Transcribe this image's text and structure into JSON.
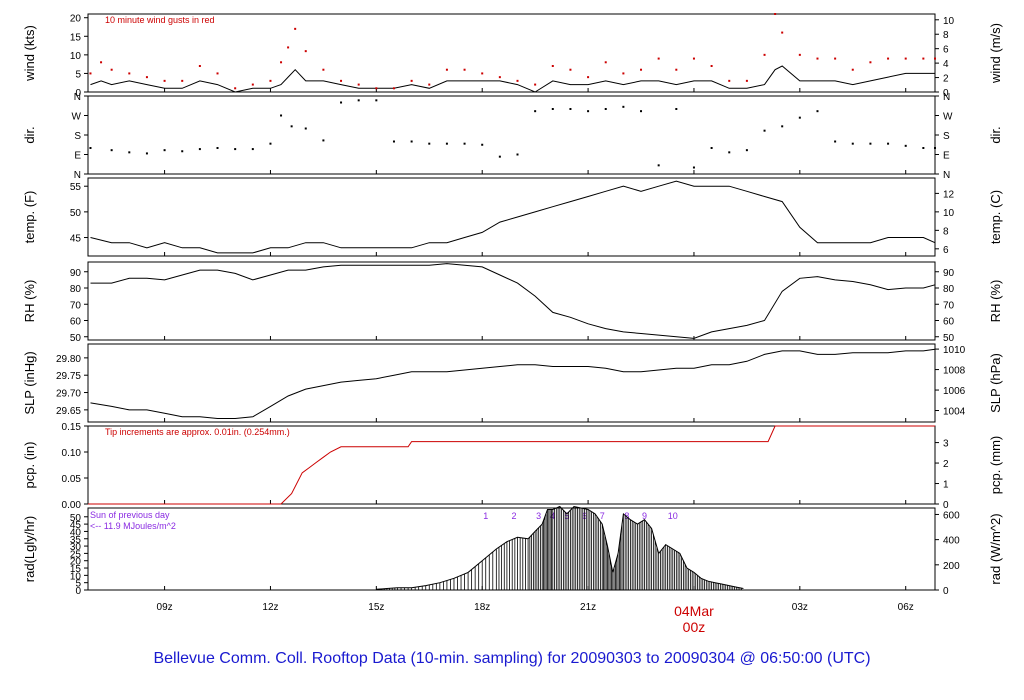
{
  "caption": "Bellevue Comm. Coll. Rooftop Data (10-min. sampling) for 20090303  to  20090304 @ 06:50:00  (UTC)",
  "chart_data": {
    "type": "line",
    "x_axis": {
      "ticks": [
        "09z",
        "12z",
        "15z",
        "18z",
        "21z",
        "03z",
        "06z"
      ],
      "tick_hours": [
        9,
        12,
        15,
        18,
        21,
        27,
        30
      ],
      "day_marker": {
        "date": "04Mar",
        "hour_label": "00z",
        "hour": 24
      },
      "range_hours": [
        6.83,
        30.83
      ]
    },
    "panels": [
      {
        "id": "wind",
        "ylabel_left": "wind (kts)",
        "ylabel_right": "wind (m/s)",
        "ylim": [
          0,
          21
        ],
        "left_ticks": [
          0,
          5,
          10,
          15,
          20
        ],
        "right_ticks": [
          0,
          2,
          4,
          6,
          8,
          10
        ],
        "annotation": "10  minute wind gusts in red",
        "series": [
          {
            "style": "line",
            "color": "#000000",
            "x": [
              6.9,
              7.2,
              7.5,
              8.0,
              8.5,
              9.0,
              9.5,
              10.0,
              10.5,
              11.0,
              11.5,
              12.0,
              12.3,
              12.5,
              12.7,
              13.0,
              13.5,
              14.0,
              14.5,
              15.0,
              15.5,
              16.0,
              16.5,
              17.0,
              17.5,
              18.0,
              18.5,
              19.0,
              19.5,
              20.0,
              20.5,
              21.0,
              21.5,
              22.0,
              22.5,
              23.0,
              23.5,
              24.0,
              24.5,
              25.0,
              25.5,
              26.0,
              26.3,
              26.5,
              27.0,
              27.5,
              28.0,
              28.5,
              29.0,
              29.5,
              30.0,
              30.5,
              30.83
            ],
            "y": [
              2,
              3,
              2,
              3,
              2,
              1,
              1,
              3,
              2,
              0,
              1,
              1,
              2,
              4,
              6,
              3,
              3,
              2,
              1,
              1,
              1,
              2,
              1,
              3,
              3,
              3,
              3,
              2,
              0,
              3,
              2,
              2,
              3,
              2,
              3,
              3,
              2,
              3,
              3,
              1,
              1,
              2,
              6,
              7,
              3,
              3,
              3,
              2,
              3,
              4,
              5,
              5,
              5
            ]
          },
          {
            "style": "dots",
            "color": "#cc0000",
            "x": [
              6.9,
              7.2,
              7.5,
              8.0,
              8.5,
              9.0,
              9.5,
              10.0,
              10.5,
              11.0,
              11.5,
              12.0,
              12.3,
              12.5,
              12.7,
              13.0,
              13.5,
              14.0,
              14.5,
              15.0,
              15.5,
              16.0,
              16.5,
              17.0,
              17.5,
              18.0,
              18.5,
              19.0,
              19.5,
              20.0,
              20.5,
              21.0,
              21.5,
              22.0,
              22.5,
              23.0,
              23.5,
              24.0,
              24.5,
              25.0,
              25.5,
              26.0,
              26.3,
              26.5,
              27.0,
              27.5,
              28.0,
              28.5,
              29.0,
              29.5,
              30.0,
              30.5,
              30.83
            ],
            "y": [
              5,
              8,
              6,
              5,
              4,
              3,
              3,
              7,
              5,
              1,
              2,
              3,
              8,
              12,
              17,
              11,
              6,
              3,
              2,
              1,
              1,
              3,
              2,
              6,
              6,
              5,
              4,
              3,
              2,
              7,
              6,
              4,
              8,
              5,
              6,
              9,
              6,
              9,
              7,
              3,
              3,
              10,
              21,
              16,
              10,
              9,
              9,
              6,
              8,
              9,
              9,
              9,
              9
            ]
          }
        ]
      },
      {
        "id": "dir",
        "ylabel_left": "dir.",
        "ylabel_right": "dir.",
        "categories": [
          "N",
          "E",
          "S",
          "W",
          "N"
        ],
        "ylim": [
          0,
          360
        ],
        "series": [
          {
            "style": "dots",
            "color": "#000000",
            "x": [
              6.9,
              7.5,
              8.0,
              8.5,
              9.0,
              9.5,
              10.0,
              10.5,
              11.0,
              11.5,
              12.0,
              12.3,
              12.6,
              13.0,
              13.5,
              14.0,
              14.5,
              15.0,
              15.5,
              16.0,
              16.5,
              17.0,
              17.5,
              18.0,
              18.5,
              19.0,
              19.5,
              20.0,
              20.5,
              21.0,
              21.5,
              22.0,
              22.5,
              23.0,
              23.5,
              24.0,
              24.5,
              25.0,
              25.5,
              26.0,
              26.5,
              27.0,
              27.5,
              28.0,
              28.5,
              29.0,
              29.5,
              30.0,
              30.5,
              30.83
            ],
            "y": [
              120,
              110,
              100,
              95,
              110,
              105,
              115,
              120,
              115,
              115,
              140,
              270,
              220,
              210,
              155,
              330,
              340,
              340,
              150,
              150,
              140,
              140,
              140,
              135,
              80,
              90,
              290,
              300,
              300,
              290,
              300,
              310,
              290,
              40,
              300,
              30,
              120,
              100,
              110,
              200,
              220,
              260,
              290,
              150,
              140,
              140,
              140,
              130,
              120,
              120
            ]
          }
        ]
      },
      {
        "id": "temp",
        "ylabel_left": "temp. (F)",
        "ylabel_right": "temp. (C)",
        "ylim": [
          41.4,
          56.6
        ],
        "left_ticks": [
          45,
          50,
          55
        ],
        "right_ticks": [
          6,
          8,
          10,
          12
        ],
        "series": [
          {
            "style": "line",
            "color": "#000000",
            "x": [
              6.9,
              7.5,
              8.0,
              8.5,
              9.0,
              9.5,
              10.0,
              10.5,
              11.0,
              11.5,
              12.0,
              12.5,
              13.0,
              13.5,
              14.0,
              14.5,
              15.0,
              15.5,
              16.0,
              16.5,
              17.0,
              17.5,
              18.0,
              18.5,
              19.0,
              19.5,
              20.0,
              20.5,
              21.0,
              21.5,
              22.0,
              22.5,
              23.0,
              23.5,
              24.0,
              24.5,
              25.0,
              25.5,
              26.0,
              26.5,
              27.0,
              27.5,
              28.0,
              28.5,
              29.0,
              29.5,
              30.0,
              30.5,
              30.83
            ],
            "y": [
              45,
              44,
              44,
              43,
              44,
              43,
              43,
              42,
              42,
              42,
              43,
              43,
              44,
              44,
              43,
              43,
              43,
              43,
              43,
              44,
              44,
              45,
              46,
              48,
              49,
              50,
              51,
              52,
              53,
              54,
              55,
              54,
              55,
              56,
              55,
              55,
              55,
              54,
              53,
              52,
              47,
              44,
              44,
              44,
              44,
              45,
              45,
              45,
              44
            ]
          }
        ]
      },
      {
        "id": "rh",
        "ylabel_left": "RH (%)",
        "ylabel_right": "RH (%)",
        "ylim": [
          48,
          96
        ],
        "left_ticks": [
          50,
          60,
          70,
          80,
          90
        ],
        "right_ticks": [
          50,
          60,
          70,
          80,
          90
        ],
        "series": [
          {
            "style": "line",
            "color": "#000000",
            "x": [
              6.9,
              7.5,
              8.0,
              8.5,
              9.0,
              9.5,
              10.0,
              10.5,
              11.0,
              11.5,
              12.0,
              12.5,
              13.0,
              13.5,
              14.0,
              14.5,
              15.0,
              15.5,
              16.0,
              16.5,
              17.0,
              17.5,
              18.0,
              18.5,
              19.0,
              19.5,
              20.0,
              20.5,
              21.0,
              21.5,
              22.0,
              22.5,
              23.0,
              23.5,
              24.0,
              24.5,
              25.0,
              25.5,
              26.0,
              26.5,
              27.0,
              27.5,
              28.0,
              28.5,
              29.0,
              29.5,
              30.0,
              30.5,
              30.83
            ],
            "y": [
              83,
              83,
              86,
              86,
              85,
              88,
              91,
              91,
              89,
              85,
              88,
              91,
              91,
              93,
              94,
              94,
              94,
              94,
              94,
              94,
              95,
              94,
              93,
              88,
              83,
              75,
              65,
              62,
              58,
              55,
              53,
              52,
              51,
              50,
              49,
              53,
              55,
              57,
              60,
              78,
              86,
              87,
              85,
              84,
              82,
              79,
              80,
              80,
              82
            ]
          }
        ]
      },
      {
        "id": "slp",
        "ylabel_left": "SLP (inHg)",
        "ylabel_right": "SLP (hPa)",
        "ylim": [
          29.615,
          29.84
        ],
        "left_ticks": [
          29.65,
          29.7,
          29.75,
          29.8
        ],
        "right_ticks": [
          1004,
          1006,
          1008,
          1010
        ],
        "series": [
          {
            "style": "line",
            "color": "#000000",
            "x": [
              6.9,
              7.5,
              8.0,
              8.5,
              9.0,
              9.5,
              10.0,
              10.5,
              11.0,
              11.5,
              12.0,
              12.5,
              13.0,
              13.5,
              14.0,
              14.5,
              15.0,
              15.5,
              16.0,
              16.5,
              17.0,
              17.5,
              18.0,
              18.5,
              19.0,
              19.5,
              20.0,
              20.5,
              21.0,
              21.5,
              22.0,
              22.5,
              23.0,
              23.5,
              24.0,
              24.5,
              25.0,
              25.5,
              26.0,
              26.5,
              27.0,
              27.5,
              28.0,
              28.5,
              29.0,
              29.5,
              30.0,
              30.5,
              30.83
            ],
            "y": [
              29.67,
              29.66,
              29.65,
              29.65,
              29.64,
              29.63,
              29.63,
              29.625,
              29.625,
              29.63,
              29.66,
              29.69,
              29.71,
              29.72,
              29.73,
              29.735,
              29.74,
              29.75,
              29.76,
              29.76,
              29.76,
              29.765,
              29.77,
              29.775,
              29.78,
              29.78,
              29.775,
              29.775,
              29.775,
              29.77,
              29.76,
              29.76,
              29.765,
              29.77,
              29.77,
              29.78,
              29.78,
              29.79,
              29.81,
              29.82,
              29.82,
              29.81,
              29.81,
              29.815,
              29.815,
              29.815,
              29.82,
              29.82,
              29.825
            ]
          }
        ]
      },
      {
        "id": "pcp",
        "ylabel_left": "pcp. (in)",
        "ylabel_right": "pcp. (mm)",
        "ylim": [
          0,
          0.15
        ],
        "left_ticks": [
          0.0,
          0.05,
          0.1,
          0.15
        ],
        "right_ticks": [
          0,
          1,
          2,
          3
        ],
        "annotation": "Tip increments are approx. 0.01in. (0.254mm.)",
        "series": [
          {
            "style": "line",
            "color": "#cc0000",
            "x": [
              6.83,
              12.3,
              12.6,
              12.9,
              13.1,
              13.3,
              13.5,
              13.7,
              14.0,
              15.9,
              16.0,
              26.1,
              26.3,
              30.83
            ],
            "y": [
              0,
              0,
              0.02,
              0.06,
              0.07,
              0.08,
              0.09,
              0.1,
              0.11,
              0.11,
              0.12,
              0.12,
              0.15,
              0.15
            ]
          }
        ]
      },
      {
        "id": "rad",
        "ylabel_left": "rad(Lgly/hr)",
        "ylabel_right": "rad (W/m^2)",
        "ylim": [
          0,
          56
        ],
        "left_ticks": [
          0,
          5,
          10,
          15,
          20,
          25,
          30,
          35,
          40,
          45,
          50
        ],
        "right_ticks": [
          0,
          200,
          400,
          600
        ],
        "annotation_lines": [
          "Sun of previous day",
          "<-- 11.9 MJoules/m^2"
        ],
        "hour_labels": [
          "1",
          "2",
          "3",
          "4",
          "5",
          "6",
          "7",
          "8",
          "9",
          "10"
        ],
        "hour_label_x": [
          18.1,
          18.9,
          19.6,
          20.0,
          20.4,
          20.9,
          21.4,
          22.1,
          22.6,
          23.4
        ],
        "series": [
          {
            "style": "impulse-line",
            "color": "#000000",
            "x": [
              15.0,
              15.3,
              15.6,
              16.0,
              16.4,
              16.8,
              17.2,
              17.6,
              18.0,
              18.4,
              18.7,
              19.0,
              19.3,
              19.5,
              19.7,
              19.85,
              20.0,
              20.2,
              20.4,
              20.6,
              20.8,
              21.0,
              21.2,
              21.4,
              21.55,
              21.7,
              21.85,
              22.0,
              22.2,
              22.4,
              22.6,
              22.8,
              23.0,
              23.2,
              23.4,
              23.6,
              23.8,
              24.0,
              24.2,
              24.4,
              24.6,
              24.8,
              25.0,
              25.2,
              25.4
            ],
            "y": [
              0.5,
              1,
              1.5,
              1.5,
              3,
              5,
              8,
              12,
              20,
              28,
              33,
              36,
              35,
              40,
              45,
              55,
              55,
              57,
              52,
              57,
              56,
              55,
              52,
              45,
              30,
              12,
              25,
              52,
              48,
              45,
              48,
              42,
              25,
              31,
              28,
              25,
              15,
              12,
              8,
              6,
              5,
              4,
              3,
              2,
              1
            ]
          }
        ]
      }
    ]
  }
}
